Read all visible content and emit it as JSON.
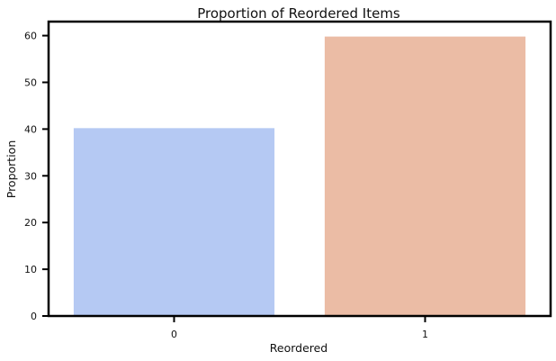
{
  "chart_data": {
    "type": "bar",
    "title": "Proportion of Reordered Items",
    "xlabel": "Reordered",
    "ylabel": "Proportion",
    "categories": [
      "0",
      "1"
    ],
    "values": [
      40.2,
      59.8
    ],
    "bar_colors": [
      "#b5c9f3",
      "#ebbca5"
    ],
    "ylim": [
      0,
      63
    ],
    "yticks": [
      0,
      10,
      20,
      30,
      40,
      50,
      60
    ],
    "ytick_labels": [
      "0",
      "10",
      "20",
      "30",
      "40",
      "50",
      "60"
    ],
    "grid": false
  }
}
